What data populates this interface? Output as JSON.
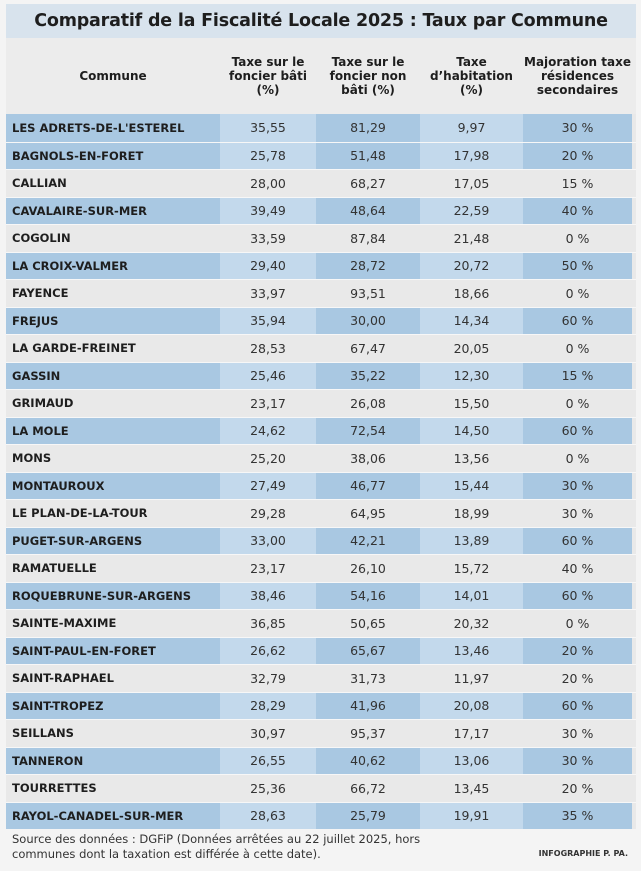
{
  "title": "Comparatif de la Fiscalité Locale 2025 : Taux par Commune",
  "headers": {
    "commune": "Commune",
    "foncier_bati": "Taxe sur le foncier bâti (%)",
    "foncier_non_bati": "Taxe sur le foncier non bâti (%)",
    "habitation": "Taxe d’habitation (%)",
    "majoration": "Majoration taxe résidences secondaires"
  },
  "rows": [
    {
      "commune": "LES ADRETS-DE-L'ESTEREL",
      "fb": "35,55",
      "fnb": "81,29",
      "th": "9,97",
      "maj": "30 %"
    },
    {
      "commune": "BAGNOLS-EN-FORET",
      "fb": "25,78",
      "fnb": "51,48",
      "th": "17,98",
      "maj": "20 %"
    },
    {
      "commune": "CALLIAN",
      "fb": "28,00",
      "fnb": "68,27",
      "th": "17,05",
      "maj": "15 %"
    },
    {
      "commune": "CAVALAIRE-SUR-MER",
      "fb": "39,49",
      "fnb": "48,64",
      "th": "22,59",
      "maj": "40 %"
    },
    {
      "commune": "COGOLIN",
      "fb": "33,59",
      "fnb": "87,84",
      "th": "21,48",
      "maj": "0 %"
    },
    {
      "commune": "LA CROIX-VALMER",
      "fb": "29,40",
      "fnb": "28,72",
      "th": "20,72",
      "maj": "50 %"
    },
    {
      "commune": "FAYENCE",
      "fb": "33,97",
      "fnb": "93,51",
      "th": "18,66",
      "maj": "0 %"
    },
    {
      "commune": "FREJUS",
      "fb": "35,94",
      "fnb": "30,00",
      "th": "14,34",
      "maj": "60 %"
    },
    {
      "commune": "LA GARDE-FREINET",
      "fb": "28,53",
      "fnb": "67,47",
      "th": "20,05",
      "maj": "0 %"
    },
    {
      "commune": "GASSIN",
      "fb": "25,46",
      "fnb": "35,22",
      "th": "12,30",
      "maj": "15 %"
    },
    {
      "commune": "GRIMAUD",
      "fb": "23,17",
      "fnb": "26,08",
      "th": "15,50",
      "maj": "0 %"
    },
    {
      "commune": "LA MOLE",
      "fb": "24,62",
      "fnb": "72,54",
      "th": "14,50",
      "maj": "60 %"
    },
    {
      "commune": "MONS",
      "fb": "25,20",
      "fnb": "38,06",
      "th": "13,56",
      "maj": "0 %"
    },
    {
      "commune": "MONTAUROUX",
      "fb": "27,49",
      "fnb": "46,77",
      "th": "15,44",
      "maj": "30 %"
    },
    {
      "commune": "LE PLAN-DE-LA-TOUR",
      "fb": "29,28",
      "fnb": "64,95",
      "th": "18,99",
      "maj": "30 %"
    },
    {
      "commune": "PUGET-SUR-ARGENS",
      "fb": "33,00",
      "fnb": "42,21",
      "th": "13,89",
      "maj": "60 %"
    },
    {
      "commune": "RAMATUELLE",
      "fb": "23,17",
      "fnb": "26,10",
      "th": "15,72",
      "maj": "40 %"
    },
    {
      "commune": "ROQUEBRUNE-SUR-ARGENS",
      "fb": "38,46",
      "fnb": "54,16",
      "th": "14,01",
      "maj": "60 %"
    },
    {
      "commune": "SAINTE-MAXIME",
      "fb": "36,85",
      "fnb": "50,65",
      "th": "20,32",
      "maj": "0 %"
    },
    {
      "commune": "SAINT-PAUL-EN-FORET",
      "fb": "26,62",
      "fnb": "65,67",
      "th": "13,46",
      "maj": "20 %"
    },
    {
      "commune": "SAINT-RAPHAEL",
      "fb": "32,79",
      "fnb": "31,73",
      "th": "11,97",
      "maj": "20 %"
    },
    {
      "commune": "SAINT-TROPEZ",
      "fb": "28,29",
      "fnb": "41,96",
      "th": "20,08",
      "maj": "60 %"
    },
    {
      "commune": "SEILLANS",
      "fb": "30,97",
      "fnb": "95,37",
      "th": "17,17",
      "maj": "30 %"
    },
    {
      "commune": "TANNERON",
      "fb": "26,55",
      "fnb": "40,62",
      "th": "13,06",
      "maj": "30 %"
    },
    {
      "commune": "TOURRETTES",
      "fb": "25,36",
      "fnb": "66,72",
      "th": "13,45",
      "maj": "20 %"
    },
    {
      "commune": "RAYOL-CANADEL-SUR-MER",
      "fb": "28,63",
      "fnb": "25,79",
      "th": "19,91",
      "maj": "35 %"
    }
  ],
  "footer": {
    "source": "Source des données : DGFiP (Données arrêtées au 22 juillet 2025, hors communes dont la taxation est différée à cette date).",
    "credit": "INFOGRAPHIE P. PA."
  }
}
